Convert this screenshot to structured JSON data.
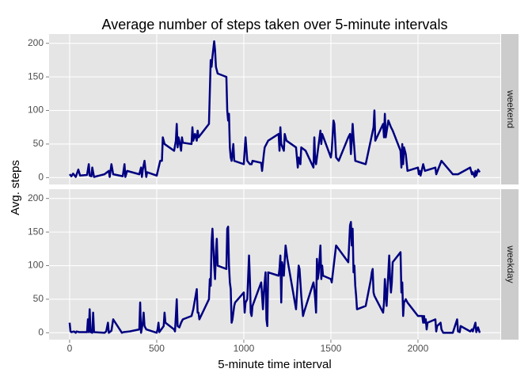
{
  "chart_data": {
    "type": "line",
    "title": "Average number of steps taken over 5-minute intervals",
    "x_label": "5-minute time interval",
    "y_label": "Avg. steps",
    "xlim": [
      -118,
      2473
    ],
    "xticks": [
      0,
      500,
      1000,
      1500,
      2000
    ],
    "ylim": [
      -10.2,
      213.8
    ],
    "yticks": [
      0,
      50,
      100,
      150,
      200
    ],
    "grid": true,
    "series": [
      {
        "name": "weekend",
        "color": "#000080",
        "x": [
          0,
          10,
          20,
          35,
          50,
          60,
          100,
          110,
          115,
          125,
          130,
          140,
          200,
          225,
          230,
          240,
          250,
          305,
          315,
          320,
          330,
          400,
          410,
          415,
          420,
          430,
          440,
          445,
          500,
          520,
          530,
          535,
          545,
          600,
          610,
          615,
          620,
          625,
          630,
          640,
          645,
          650,
          700,
          705,
          710,
          720,
          730,
          735,
          740,
          800,
          810,
          815,
          820,
          830,
          835,
          840,
          850,
          900,
          905,
          910,
          915,
          920,
          925,
          930,
          940,
          945,
          1000,
          1010,
          1020,
          1035,
          1045,
          1050,
          1100,
          1105,
          1115,
          1120,
          1140,
          1200,
          1205,
          1210,
          1215,
          1230,
          1235,
          1245,
          1300,
          1310,
          1315,
          1320,
          1325,
          1330,
          1355,
          1400,
          1405,
          1410,
          1415,
          1435,
          1440,
          1445,
          1450,
          1500,
          1505,
          1515,
          1520,
          1530,
          1545,
          1600,
          1610,
          1615,
          1620,
          1625,
          1630,
          1640,
          1700,
          1745,
          1750,
          1755,
          1800,
          1805,
          1810,
          1815,
          1830,
          1845,
          1855,
          1900,
          1905,
          1910,
          1915,
          1920,
          1930,
          1940,
          2000,
          2005,
          2010,
          2015,
          2030,
          2040,
          2100,
          2105,
          2135,
          2200,
          2230,
          2300,
          2310,
          2315,
          2325,
          2330,
          2335,
          2345,
          2355
        ],
        "values": [
          5,
          2,
          6,
          1,
          12,
          3,
          4,
          20,
          3,
          2,
          15,
          1,
          5,
          10,
          1,
          20,
          5,
          2,
          20,
          1,
          10,
          5,
          15,
          1,
          12,
          25,
          1,
          8,
          3,
          25,
          25,
          60,
          50,
          40,
          55,
          80,
          45,
          60,
          55,
          40,
          60,
          52,
          50,
          75,
          55,
          65,
          55,
          70,
          60,
          80,
          175,
          165,
          180,
          203,
          190,
          165,
          155,
          150,
          100,
          85,
          95,
          45,
          30,
          25,
          50,
          25,
          20,
          60,
          25,
          20,
          20,
          25,
          22,
          10,
          35,
          45,
          55,
          65,
          40,
          75,
          50,
          40,
          65,
          55,
          45,
          15,
          30,
          25,
          20,
          45,
          40,
          15,
          60,
          25,
          20,
          60,
          70,
          50,
          65,
          30,
          40,
          85,
          80,
          30,
          25,
          60,
          65,
          35,
          55,
          80,
          60,
          25,
          20,
          75,
          100,
          55,
          80,
          60,
          95,
          60,
          85,
          75,
          70,
          40,
          15,
          50,
          20,
          45,
          35,
          10,
          15,
          5,
          10,
          3,
          20,
          10,
          15,
          5,
          25,
          5,
          5,
          15,
          5,
          8,
          1,
          10,
          3,
          12,
          8
        ]
      },
      {
        "name": "weekday",
        "color": "#000080",
        "x": [
          0,
          5,
          10,
          25,
          35,
          40,
          55,
          100,
          105,
          110,
          115,
          120,
          130,
          135,
          140,
          200,
          210,
          220,
          225,
          240,
          250,
          300,
          310,
          345,
          400,
          405,
          410,
          420,
          425,
          430,
          440,
          500,
          505,
          510,
          515,
          540,
          545,
          550,
          600,
          605,
          610,
          615,
          620,
          630,
          640,
          650,
          700,
          710,
          720,
          730,
          735,
          740,
          745,
          800,
          805,
          810,
          815,
          820,
          830,
          835,
          840,
          845,
          850,
          900,
          905,
          910,
          915,
          920,
          925,
          930,
          935,
          945,
          950,
          1000,
          1005,
          1010,
          1020,
          1030,
          1035,
          1040,
          1045,
          1050,
          1100,
          1105,
          1110,
          1115,
          1125,
          1130,
          1135,
          1140,
          1200,
          1205,
          1210,
          1215,
          1220,
          1225,
          1230,
          1240,
          1250,
          1300,
          1315,
          1320,
          1330,
          1340,
          1345,
          1400,
          1405,
          1410,
          1415,
          1420,
          1425,
          1430,
          1440,
          1445,
          1450,
          1455,
          1500,
          1505,
          1530,
          1600,
          1610,
          1615,
          1620,
          1625,
          1630,
          1635,
          1640,
          1645,
          1650,
          1700,
          1730,
          1735,
          1740,
          1745,
          1750,
          1800,
          1805,
          1810,
          1815,
          1820,
          1830,
          1835,
          1840,
          1845,
          1850,
          1855,
          1900,
          1905,
          1910,
          1915,
          1920,
          1930,
          1940,
          2000,
          2025,
          2030,
          2035,
          2040,
          2045,
          2050,
          2055,
          2100,
          2105,
          2110,
          2130,
          2135,
          2145,
          2200,
          2225,
          2230,
          2240,
          2245,
          2300,
          2310,
          2315,
          2330,
          2335,
          2345,
          2355
        ],
        "values": [
          15,
          2,
          1,
          2,
          0,
          2,
          1,
          1,
          20,
          1,
          35,
          1,
          0,
          30,
          1,
          0,
          2,
          15,
          0,
          3,
          20,
          0,
          1,
          2,
          5,
          45,
          0,
          15,
          30,
          10,
          5,
          0,
          5,
          15,
          1,
          10,
          30,
          15,
          5,
          2,
          25,
          50,
          10,
          8,
          15,
          20,
          25,
          35,
          50,
          65,
          30,
          30,
          20,
          50,
          80,
          70,
          135,
          155,
          100,
          80,
          120,
          140,
          100,
          95,
          155,
          158,
          100,
          75,
          65,
          15,
          20,
          40,
          45,
          60,
          30,
          45,
          50,
          115,
          80,
          30,
          25,
          40,
          75,
          55,
          35,
          60,
          90,
          20,
          10,
          90,
          85,
          95,
          115,
          45,
          105,
          95,
          85,
          130,
          110,
          35,
          100,
          95,
          55,
          25,
          30,
          75,
          65,
          50,
          30,
          110,
          80,
          90,
          130,
          80,
          100,
          85,
          80,
          75,
          130,
          105,
          160,
          165,
          130,
          155,
          90,
          100,
          70,
          55,
          35,
          40,
          80,
          90,
          95,
          60,
          55,
          30,
          45,
          80,
          60,
          40,
          90,
          115,
          80,
          60,
          75,
          105,
          120,
          60,
          75,
          25,
          45,
          50,
          45,
          25,
          25,
          15,
          25,
          15,
          20,
          5,
          15,
          20,
          2,
          10,
          15,
          5,
          0,
          0,
          20,
          2,
          1,
          10,
          2,
          5,
          2,
          15,
          1,
          8,
          0
        ]
      }
    ]
  }
}
